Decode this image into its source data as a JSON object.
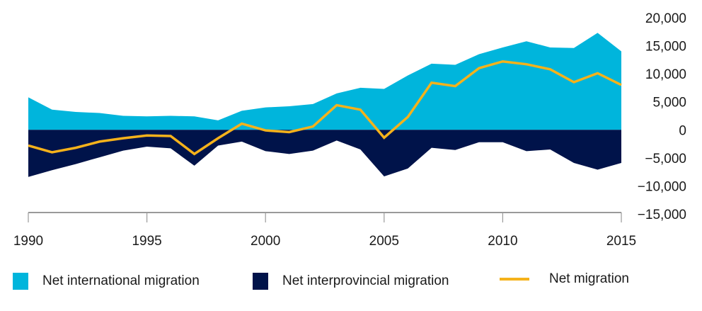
{
  "chart_data": {
    "type": "area",
    "title": "",
    "xlabel": "",
    "ylabel": "",
    "x": [
      1990,
      1991,
      1992,
      1993,
      1994,
      1995,
      1996,
      1997,
      1998,
      1999,
      2000,
      2001,
      2002,
      2003,
      2004,
      2005,
      2006,
      2007,
      2008,
      2009,
      2010,
      2011,
      2012,
      2013,
      2014,
      2015
    ],
    "xlim": [
      1990,
      2015
    ],
    "ylim": [
      -15000,
      20000
    ],
    "x_ticks": [
      1990,
      1995,
      2000,
      2005,
      2010,
      2015
    ],
    "x_tick_labels": [
      "1990",
      "1995",
      "2000",
      "2005",
      "2010",
      "2015"
    ],
    "y_ticks": [
      20000,
      15000,
      10000,
      5000,
      0,
      -5000,
      -10000,
      -15000
    ],
    "y_tick_labels": [
      "20,000",
      "15,000",
      "10,000",
      "5,000",
      "0",
      "−5,000",
      "−10,000",
      "−15,000"
    ],
    "y_axis_position": "right",
    "grid": false,
    "legend_position": "bottom",
    "series": [
      {
        "name": "Net international migration",
        "kind": "area",
        "color": "#00b5dc",
        "values": [
          5800,
          3600,
          3200,
          3000,
          2500,
          2400,
          2500,
          2400,
          1700,
          3400,
          4000,
          4200,
          4600,
          6500,
          7500,
          7300,
          9700,
          11800,
          11600,
          13500,
          14700,
          15800,
          14700,
          14600,
          17300,
          14000
        ]
      },
      {
        "name": "Net interprovincial migration",
        "kind": "area",
        "color": "#00134a",
        "values": [
          -8400,
          -7200,
          -6100,
          -4900,
          -3700,
          -3000,
          -3300,
          -6400,
          -2800,
          -2100,
          -3800,
          -4300,
          -3700,
          -1900,
          -3500,
          -8300,
          -6900,
          -3200,
          -3600,
          -2200,
          -2200,
          -3800,
          -3500,
          -5900,
          -7100,
          -5900
        ]
      },
      {
        "name": "Net migration",
        "kind": "line",
        "color": "#f5b21b",
        "values": [
          -2800,
          -4000,
          -3200,
          -2100,
          -1500,
          -1000,
          -1100,
          -4300,
          -1500,
          1100,
          -100,
          -400,
          600,
          4400,
          3600,
          -1400,
          2300,
          8400,
          7800,
          11000,
          12200,
          11700,
          10800,
          8500,
          10100,
          8000
        ]
      }
    ]
  },
  "legend": {
    "items": [
      {
        "label": "Net international migration",
        "color": "#00b5dc",
        "kind": "swatch"
      },
      {
        "label": "Net interprovincial migration",
        "color": "#00134a",
        "kind": "swatch"
      },
      {
        "label": "Net migration",
        "color": "#f5b21b",
        "kind": "line"
      }
    ]
  },
  "axis_color": "#9a9a9a"
}
